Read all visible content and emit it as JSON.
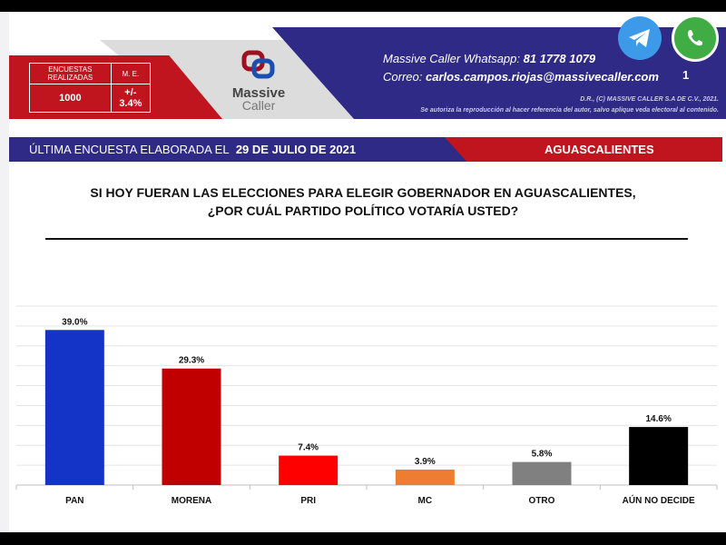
{
  "header": {
    "stats_labels": [
      "ENCUESTAS REALIZADAS",
      "M. E."
    ],
    "stats_values": [
      "1000",
      "+/- 3.4%"
    ],
    "logo_line1": "Massive",
    "logo_line2": "Caller",
    "whatsapp_label": "Massive Caller Whatsapp:",
    "whatsapp_number": "81 1778 1079",
    "email_label": "Correo:",
    "email": "carlos.campos.riojas@massivecaller.com",
    "page_number": "1",
    "legal1": "D.R., (C) MASSIVE CALLER S.A DE C.V., 2021.",
    "legal2": "Se autoriza la reproducción al hacer referencia del autor, salvo aplique veda electoral al contenido."
  },
  "band": {
    "prefix": "ÚLTIMA ENCUESTA ELABORADA EL",
    "date": "29 DE JULIO DE 2021",
    "state": "AGUASCALIENTES"
  },
  "chart_data": {
    "type": "bar",
    "title": "SI HOY FUERAN LAS ELECCIONES PARA ELEGIR GOBERNADOR EN AGUASCALIENTES, ¿POR CUÁL PARTIDO POLÍTICO VOTARÍA USTED?",
    "title_line1": "SI HOY FUERAN LAS ELECCIONES PARA ELEGIR GOBERNADOR EN AGUASCALIENTES,",
    "title_line2": "¿POR CUÁL PARTIDO POLÍTICO VOTARÍA USTED?",
    "categories": [
      "PAN",
      "MORENA",
      "PRI",
      "MC",
      "OTRO",
      "AÚN NO DECIDE"
    ],
    "values": [
      39.0,
      29.3,
      7.4,
      3.9,
      5.8,
      14.6
    ],
    "labels": [
      "39.0%",
      "29.3%",
      "7.4%",
      "3.9%",
      "5.8%",
      "14.6%"
    ],
    "colors": [
      "#1434c8",
      "#c00000",
      "#ff0000",
      "#ed7d31",
      "#808080",
      "#000000"
    ],
    "ylim": [
      0,
      45
    ],
    "grid": true,
    "xlabel": "",
    "ylabel": ""
  }
}
